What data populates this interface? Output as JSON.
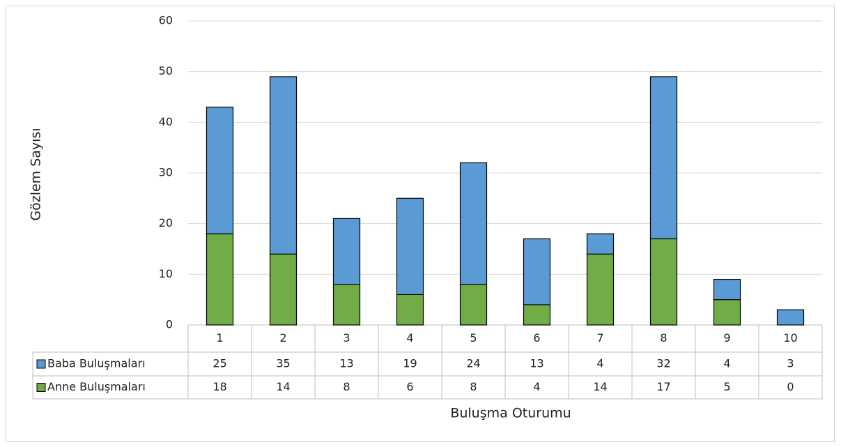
{
  "chart_data": {
    "type": "bar",
    "stacked": true,
    "y_label": "Gözlem Sayısı",
    "x_label": "Buluşma Oturumu",
    "categories": [
      "1",
      "2",
      "3",
      "4",
      "5",
      "6",
      "7",
      "8",
      "9",
      "10"
    ],
    "series": [
      {
        "name": "Baba Buluşmaları",
        "color": "#5b9bd5",
        "values": [
          25,
          35,
          13,
          19,
          24,
          13,
          4,
          32,
          4,
          3
        ]
      },
      {
        "name": "Anne Buluşmaları",
        "color": "#70ad47",
        "values": [
          18,
          14,
          8,
          6,
          8,
          4,
          14,
          17,
          5,
          0
        ]
      }
    ],
    "ylim": [
      0,
      60
    ],
    "yticks": [
      0,
      10,
      20,
      30,
      40,
      50,
      60
    ],
    "grid": true
  }
}
